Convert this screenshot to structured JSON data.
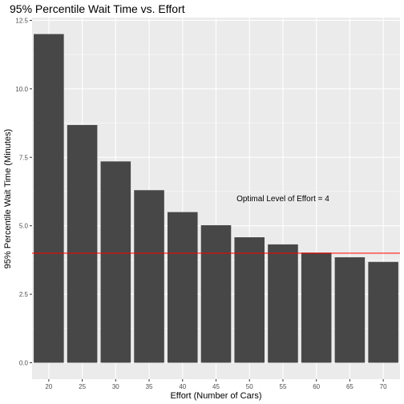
{
  "chart_data": {
    "type": "bar",
    "title": "95% Percentile Wait Time vs. Effort",
    "xlabel": "Effort (Number of Cars)",
    "ylabel": "95% Percentile Wait Time (Minutes)",
    "categories": [
      "20",
      "25",
      "30",
      "35",
      "40",
      "45",
      "50",
      "55",
      "60",
      "65",
      "70"
    ],
    "values": [
      12.0,
      8.68,
      7.35,
      6.3,
      5.5,
      5.02,
      4.58,
      4.32,
      4.02,
      3.85,
      3.68
    ],
    "ylim": [
      -0.6,
      12.6
    ],
    "yticks": [
      0.0,
      2.5,
      5.0,
      7.5,
      10.0,
      12.5
    ],
    "ytick_labels": [
      "0.0",
      "2.5",
      "5.0",
      "7.5",
      "10.0",
      "12.5"
    ],
    "reference_line": {
      "y": 4.0,
      "color": "#ff0000"
    },
    "annotation": {
      "text": "Optimal Level of Effort = 4",
      "x": "55",
      "y": 6.0
    },
    "grid": true,
    "colors": {
      "bar": "#474747",
      "panel": "#ebebeb",
      "grid": "#ffffff"
    }
  }
}
